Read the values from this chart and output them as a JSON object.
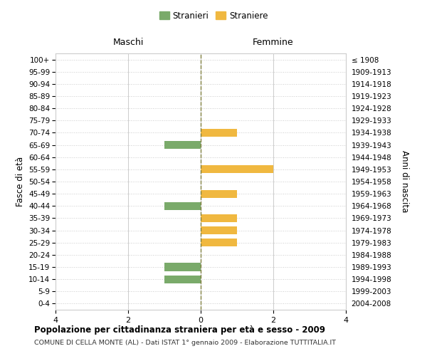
{
  "age_groups": [
    "100+",
    "95-99",
    "90-94",
    "85-89",
    "80-84",
    "75-79",
    "70-74",
    "65-69",
    "60-64",
    "55-59",
    "50-54",
    "45-49",
    "40-44",
    "35-39",
    "30-34",
    "25-29",
    "20-24",
    "15-19",
    "10-14",
    "5-9",
    "0-4"
  ],
  "birth_years": [
    "≤ 1908",
    "1909-1913",
    "1914-1918",
    "1919-1923",
    "1924-1928",
    "1929-1933",
    "1934-1938",
    "1939-1943",
    "1944-1948",
    "1949-1953",
    "1954-1958",
    "1959-1963",
    "1964-1968",
    "1969-1973",
    "1974-1978",
    "1979-1983",
    "1984-1988",
    "1989-1993",
    "1994-1998",
    "1999-2003",
    "2004-2008"
  ],
  "maschi": [
    0,
    0,
    0,
    0,
    0,
    0,
    0,
    -1,
    0,
    0,
    0,
    0,
    -1,
    0,
    0,
    0,
    0,
    -1,
    -1,
    0,
    0
  ],
  "femmine": [
    0,
    0,
    0,
    0,
    0,
    0,
    1,
    0,
    0,
    2,
    0,
    1,
    0,
    1,
    1,
    1,
    0,
    0,
    0,
    0,
    0
  ],
  "maschi_color": "#7aaa6a",
  "femmine_color": "#f0b840",
  "background_color": "#ffffff",
  "grid_color": "#cccccc",
  "center_line_color": "#808040",
  "title": "Popolazione per cittadinanza straniera per età e sesso - 2009",
  "subtitle": "COMUNE DI CELLA MONTE (AL) - Dati ISTAT 1° gennaio 2009 - Elaborazione TUTTITALIA.IT",
  "ylabel_left": "Fasce di età",
  "ylabel_right": "Anni di nascita",
  "maschi_label": "Stranieri",
  "femmine_label": "Straniere",
  "maschi_header": "Maschi",
  "femmine_header": "Femmine",
  "xlim": [
    -4,
    4
  ],
  "xticks": [
    -4,
    -2,
    0,
    2,
    4
  ],
  "xticklabels": [
    "4",
    "2",
    "0",
    "2",
    "4"
  ]
}
